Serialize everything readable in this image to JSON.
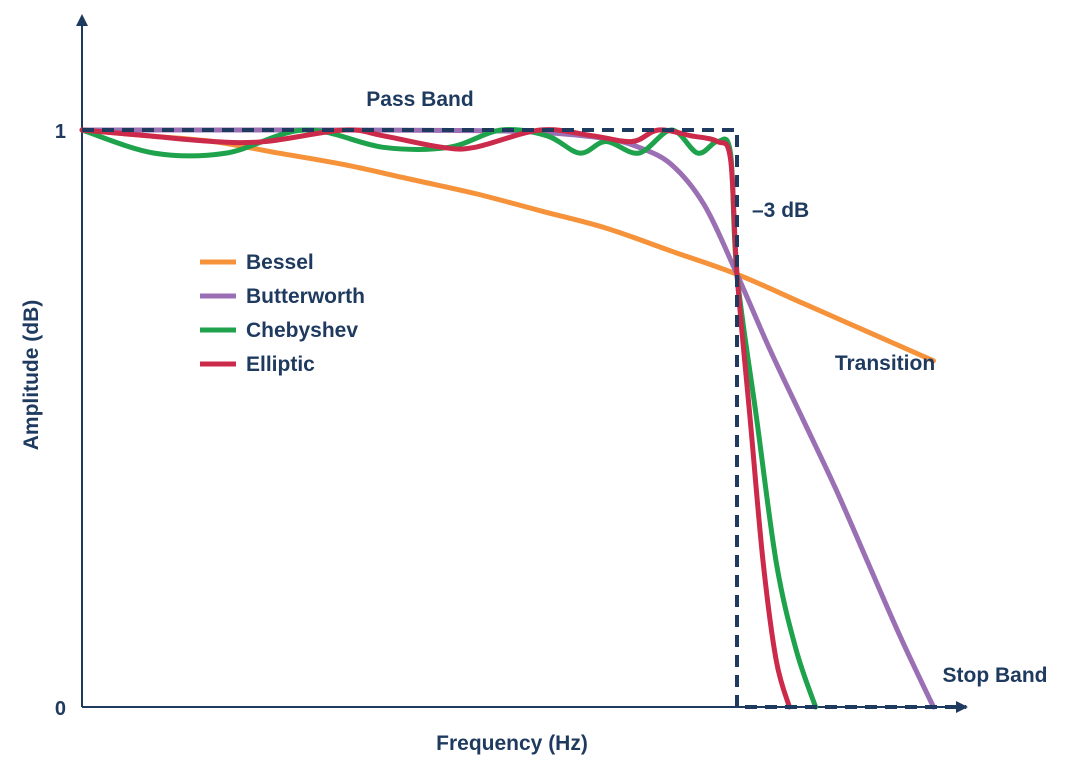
{
  "chart_data": {
    "type": "line",
    "title": "",
    "xlabel": "Frequency (Hz)",
    "ylabel": "Amplitude (dB)",
    "xlim": [
      0,
      1.35
    ],
    "ylim": [
      0,
      1.1
    ],
    "yticks": [
      {
        "value": 0,
        "label": "0"
      },
      {
        "value": 1,
        "label": "1"
      }
    ],
    "grid": false,
    "legend": "left-middle",
    "annotations": [
      {
        "text": "Pass Band",
        "x": 0.5,
        "y": 1.04
      },
      {
        "text": "–3 dB",
        "x": 1.07,
        "y": 0.86
      },
      {
        "text": "Transition",
        "x": 1.25,
        "y": 0.6
      },
      {
        "text": "Stop Band",
        "x": 1.42,
        "y": 0.06
      }
    ],
    "ideal_response": {
      "style": "dashed",
      "color": "#1f3a5f",
      "x": [
        0,
        1.0,
        1.0,
        1.35
      ],
      "y": [
        1,
        1,
        0,
        0
      ]
    },
    "series": [
      {
        "name": "Bessel",
        "color": "#f5923a",
        "x": [
          0,
          0.1,
          0.2,
          0.3,
          0.4,
          0.5,
          0.6,
          0.7,
          0.8,
          0.9,
          1.0,
          1.1,
          1.2,
          1.3
        ],
        "y": [
          1.0,
          0.99,
          0.98,
          0.96,
          0.94,
          0.915,
          0.89,
          0.86,
          0.83,
          0.79,
          0.75,
          0.7,
          0.65,
          0.6
        ]
      },
      {
        "name": "Butterworth",
        "color": "#9b6fb4",
        "x": [
          0,
          0.2,
          0.4,
          0.6,
          0.7,
          0.8,
          0.85,
          0.9,
          0.95,
          1.0,
          1.05,
          1.1,
          1.15,
          1.2,
          1.25,
          1.3
        ],
        "y": [
          1.0,
          1.0,
          1.0,
          0.999,
          0.996,
          0.985,
          0.97,
          0.94,
          0.87,
          0.75,
          0.62,
          0.5,
          0.38,
          0.25,
          0.12,
          0.0
        ]
      },
      {
        "name": "Chebyshev",
        "color": "#1ea24b",
        "x": [
          0,
          0.11,
          0.22,
          0.34,
          0.46,
          0.56,
          0.64,
          0.71,
          0.76,
          0.8,
          0.85,
          0.9,
          0.94,
          0.97,
          0.99,
          1.0,
          1.03,
          1.06,
          1.09,
          1.12
        ],
        "y": [
          1.0,
          0.96,
          0.96,
          1.0,
          0.97,
          0.97,
          1.0,
          0.99,
          0.96,
          0.98,
          0.96,
          1.0,
          0.96,
          0.98,
          0.96,
          0.75,
          0.5,
          0.25,
          0.1,
          0.0
        ]
      },
      {
        "name": "Elliptic",
        "color": "#cc2a4a",
        "x": [
          0,
          0.1,
          0.2,
          0.28,
          0.4,
          0.46,
          0.55,
          0.6,
          0.7,
          0.78,
          0.84,
          0.88,
          0.93,
          0.97,
          0.99,
          1.0,
          1.02,
          1.04,
          1.06,
          1.08
        ],
        "y": [
          1.0,
          0.99,
          0.98,
          0.98,
          1.0,
          0.99,
          0.97,
          0.97,
          1.0,
          0.99,
          0.98,
          1.0,
          0.99,
          0.98,
          0.95,
          0.75,
          0.5,
          0.25,
          0.08,
          0.0
        ]
      }
    ]
  }
}
